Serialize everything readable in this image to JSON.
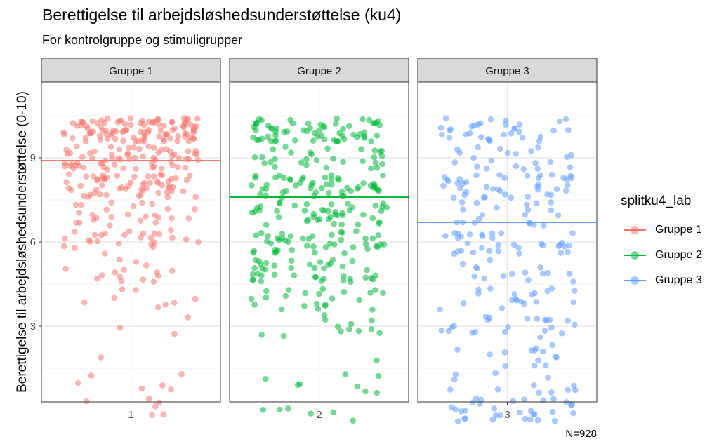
{
  "chart_data": {
    "type": "scatter",
    "title": "Berettigelse til arbejdsløshedsunderstøttelse (ku4)",
    "subtitle": "For kontrolgruppe og stimuligrupper",
    "ylabel": "Berettigelse til arbejdsløshedsunderstøttelse (0-10)",
    "caption": "N=928",
    "ylim": [
      0.3,
      11.7
    ],
    "yticks": [
      "3",
      "6",
      "9"
    ],
    "ytick_values": [
      3,
      6,
      9
    ],
    "grid": true,
    "legend": {
      "title": "splitku4_lab",
      "position": "right",
      "entries": [
        "Gruppe 1",
        "Gruppe 2",
        "Gruppe 3"
      ]
    },
    "facets": [
      {
        "strip": "Gruppe 1",
        "xtick": "1",
        "color": "#F8766D",
        "mean": 8.9,
        "level_counts": {
          "0": 6,
          "1": 6,
          "2": 1,
          "3": 3,
          "4": 8,
          "5": 15,
          "6": 26,
          "7": 25,
          "8": 58,
          "9": 65,
          "10": 102
        }
      },
      {
        "strip": "Gruppe 2",
        "xtick": "2",
        "color": "#00BA38",
        "mean": 7.6,
        "level_counts": {
          "0": 6,
          "1": 8,
          "2": 1,
          "3": 12,
          "4": 22,
          "5": 40,
          "6": 44,
          "7": 45,
          "8": 51,
          "9": 30,
          "10": 65
        }
      },
      {
        "strip": "Gruppe 3",
        "xtick": "3",
        "color": "#619CFF",
        "mean": 6.7,
        "level_counts": {
          "0": 32,
          "1": 12,
          "2": 14,
          "3": 22,
          "4": 19,
          "5": 15,
          "6": 33,
          "7": 20,
          "8": 40,
          "9": 21,
          "10": 32
        }
      }
    ]
  }
}
